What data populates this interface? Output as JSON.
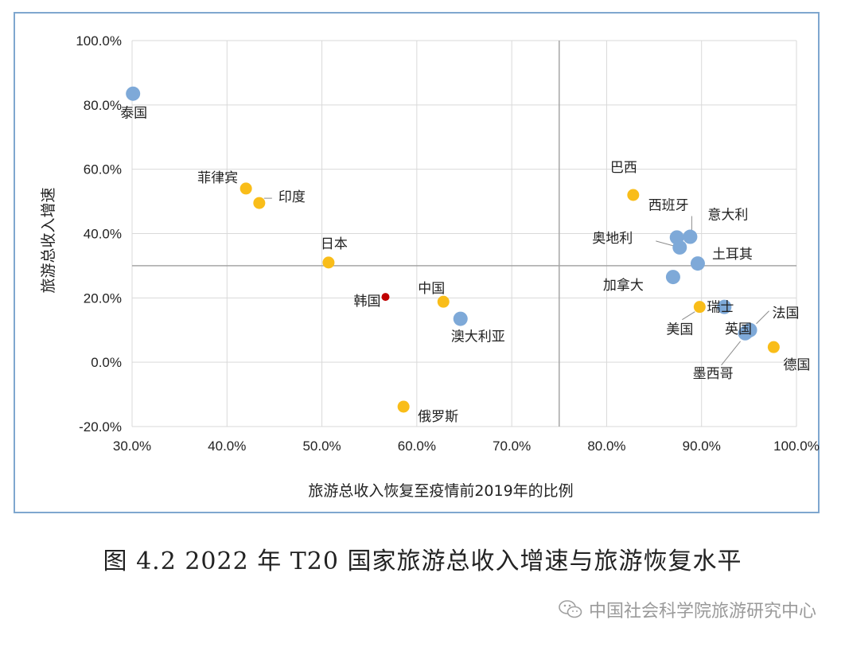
{
  "chart_data": {
    "type": "scatter",
    "xlabel": "旅游总收入恢复至疫情前2019年的比例",
    "ylabel": "旅游总收入增速",
    "xlim": [
      0.3,
      1.0
    ],
    "ylim": [
      -0.2,
      1.0
    ],
    "x_ticks": [
      "30.0%",
      "40.0%",
      "50.0%",
      "60.0%",
      "70.0%",
      "80.0%",
      "90.0%",
      "100.0%"
    ],
    "y_ticks": [
      "100.0%",
      "80.0%",
      "60.0%",
      "40.0%",
      "20.0%",
      "0.0%",
      "-20.0%"
    ],
    "grid": true,
    "reference_lines": {
      "x": 0.75,
      "y": 0.3
    },
    "colors": {
      "blue": "#7ea9d8",
      "yellow": "#f9bd19",
      "red": "#c00000",
      "grid": "#d9d9d9",
      "ref": "#a6a6a6"
    },
    "points": [
      {
        "name": "泰国",
        "x": 0.301,
        "y": 0.835,
        "color": "blue"
      },
      {
        "name": "菲律宾",
        "x": 0.42,
        "y": 0.54,
        "color": "yellow"
      },
      {
        "name": "印度",
        "x": 0.434,
        "y": 0.495,
        "color": "yellow"
      },
      {
        "name": "日本",
        "x": 0.507,
        "y": 0.31,
        "color": "yellow"
      },
      {
        "name": "韩国",
        "x": 0.567,
        "y": 0.203,
        "color": "red"
      },
      {
        "name": "中国",
        "x": 0.628,
        "y": 0.188,
        "color": "yellow"
      },
      {
        "name": "澳大利亚",
        "x": 0.646,
        "y": 0.135,
        "color": "blue"
      },
      {
        "name": "俄罗斯",
        "x": 0.586,
        "y": -0.138,
        "color": "yellow"
      },
      {
        "name": "巴西",
        "x": 0.828,
        "y": 0.52,
        "color": "yellow"
      },
      {
        "name": "西班牙",
        "x": 0.874,
        "y": 0.388,
        "color": "blue"
      },
      {
        "name": "意大利",
        "x": 0.888,
        "y": 0.39,
        "color": "blue"
      },
      {
        "name": "奥地利",
        "x": 0.877,
        "y": 0.357,
        "color": "blue"
      },
      {
        "name": "土耳其",
        "x": 0.896,
        "y": 0.307,
        "color": "blue"
      },
      {
        "name": "加拿大",
        "x": 0.87,
        "y": 0.265,
        "color": "blue"
      },
      {
        "name": "瑞士",
        "x": 0.924,
        "y": 0.172,
        "color": "blue"
      },
      {
        "name": "美国",
        "x": 0.898,
        "y": 0.172,
        "color": "yellow"
      },
      {
        "name": "法国",
        "x": 0.951,
        "y": 0.1,
        "color": "blue"
      },
      {
        "name": "英国",
        "x": 0.948,
        "y": 0.095,
        "color": "blue"
      },
      {
        "name": "墨西哥",
        "x": 0.946,
        "y": 0.09,
        "color": "blue"
      },
      {
        "name": "德国",
        "x": 0.976,
        "y": 0.047,
        "color": "yellow"
      }
    ]
  },
  "caption": "图 4.2 2022 年 T20 国家旅游总收入增速与旅游恢复水平",
  "watermark": {
    "text": "中国社会科学院旅游研究中心",
    "icon": "wechat-icon"
  }
}
